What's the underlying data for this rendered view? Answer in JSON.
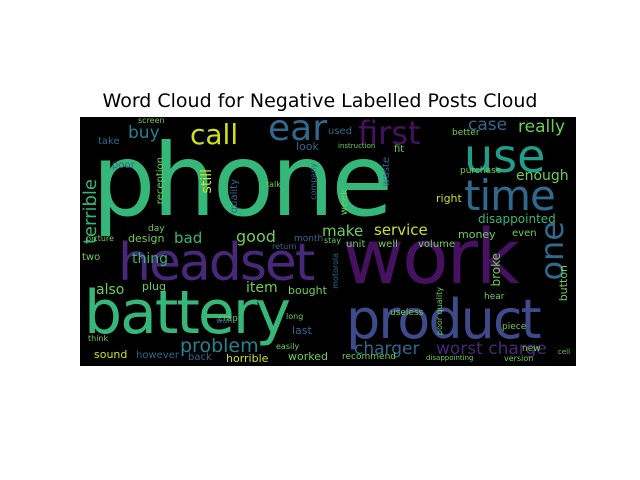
{
  "figure": {
    "title": "Word Cloud for Negative Labelled Posts Cloud",
    "background_color": "#000000"
  },
  "palette": {
    "purple": "#46115f",
    "violet": "#482878",
    "indigo": "#3e4a89",
    "blue": "#31688e",
    "teal": "#26828e",
    "sea": "#1f9e89",
    "green": "#35b779",
    "lime": "#6ece58",
    "yellow": "#cde11d"
  },
  "words": {
    "phone": "phone",
    "work": "work",
    "battery": "battery",
    "product": "product",
    "headset": "headset",
    "use": "use",
    "time": "time",
    "first": "first",
    "ear": "ear",
    "call": "call",
    "one": "one",
    "problem": "problem",
    "charger": "charger",
    "worst_charge": "worst charge",
    "terrible": "terrible",
    "buy": "buy",
    "case": "case",
    "really": "really",
    "enough": "enough",
    "disappointed": "disappointed",
    "service": "service",
    "make": "make",
    "good": "good",
    "bad": "bad",
    "thing": "thing",
    "item": "item",
    "also": "also",
    "still": "still",
    "design": "design",
    "plug": "plug",
    "sound": "sound",
    "however": "however",
    "back": "back",
    "horrible": "horrible",
    "worked": "worked",
    "recommend": "recommend",
    "broke": "broke",
    "button": "button",
    "money": "money",
    "even": "even",
    "volume": "volume",
    "unit": "unit",
    "well": "well",
    "bought": "bought",
    "last": "last",
    "month": "month",
    "two": "two",
    "poor": "poor",
    "take": "take",
    "look": "look",
    "used": "used",
    "reception": "reception",
    "quality": "quality",
    "waste": "waste",
    "right": "right",
    "week": "week",
    "fit": "fit",
    "purchase": "purchase",
    "better": "better",
    "day": "day",
    "crap": "crap",
    "useless": "useless",
    "piece": "piece",
    "new": "new",
    "version": "version",
    "motorola": "motorola",
    "easily": "easily",
    "long": "long",
    "talk": "talk",
    "company": "company",
    "stay": "stay",
    "return": "return",
    "want": "want",
    "picture": "picture",
    "screen": "screen",
    "instruction": "instruction",
    "hear": "hear",
    "poor_quality": "poor quality",
    "disappointing": "disappointing",
    "think": "think",
    "cell": "cell"
  }
}
